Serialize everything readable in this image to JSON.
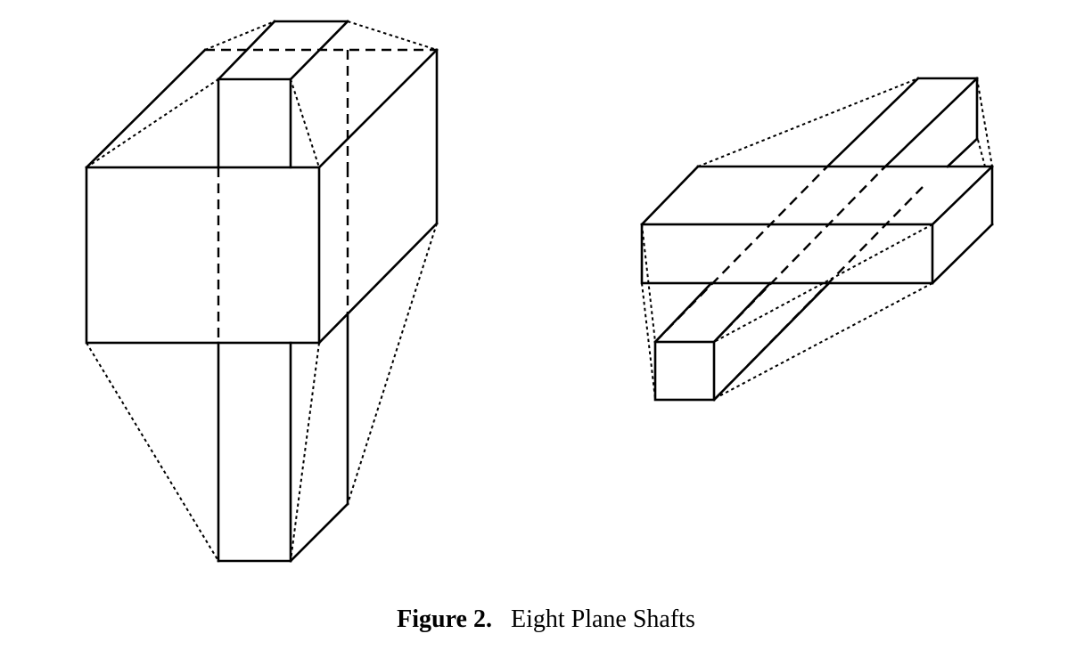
{
  "caption": {
    "label": "Figure 2.",
    "title": "Eight Plane Shafts"
  }
}
